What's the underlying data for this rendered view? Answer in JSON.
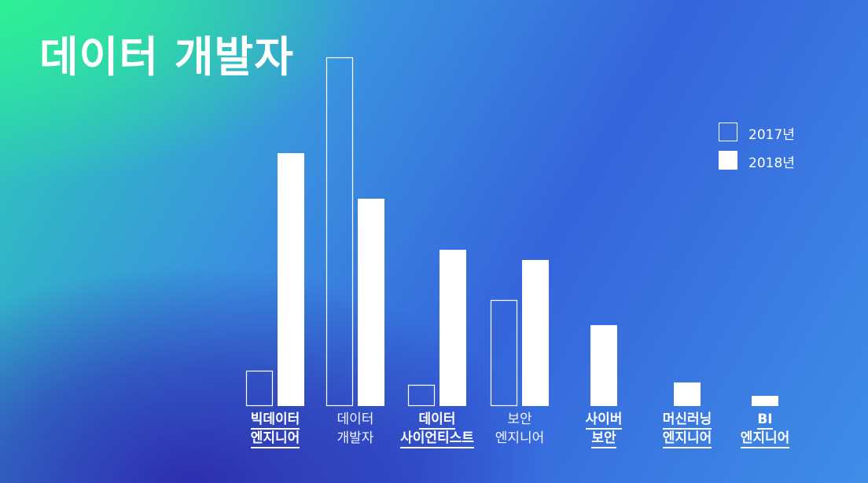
{
  "title": "데이터 개발자",
  "chart_data": {
    "type": "bar",
    "categories": [
      {
        "lines": [
          "빅데이터",
          "엔지니어"
        ],
        "emphasis": true
      },
      {
        "lines": [
          "데이터",
          "개발자"
        ],
        "emphasis": false
      },
      {
        "lines": [
          "데이터",
          "사이언티스트"
        ],
        "emphasis": true
      },
      {
        "lines": [
          "보안",
          "엔지니어"
        ],
        "emphasis": false
      },
      {
        "lines": [
          "사이버",
          "보안"
        ],
        "emphasis": true
      },
      {
        "lines": [
          "머신러닝",
          "엔지니어"
        ],
        "emphasis": true
      },
      {
        "lines": [
          "BI",
          "엔지니어"
        ],
        "emphasis": true
      }
    ],
    "series": [
      {
        "name": "2017년",
        "style": "outline",
        "color": "#ffffff",
        "values": [
          45,
          444,
          27,
          135,
          null,
          null,
          null
        ]
      },
      {
        "name": "2018년",
        "style": "filled",
        "color": "#ffffff",
        "values": [
          322,
          264,
          199,
          186,
          103,
          30,
          13
        ]
      }
    ],
    "ylim": [
      0,
      444
    ],
    "legend_position": "top-right",
    "grid": false,
    "y_axis_shown": false
  }
}
